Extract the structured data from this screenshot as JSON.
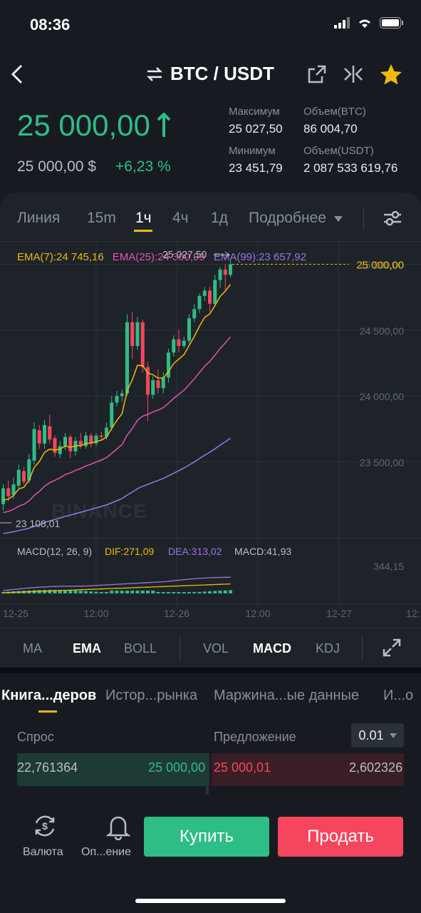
{
  "status_bar": {
    "time": "08:36"
  },
  "header": {
    "pair": "BTC / USDT",
    "swap_icon": "swap-arrows-icon",
    "share_icon": "share-icon",
    "compare_icon": "compare-icon",
    "favorite_icon": "star-icon"
  },
  "ticker": {
    "last_price": "25 000,00",
    "usd_price": "25 000,00 $",
    "change_pct": "+6,23 %",
    "high_label": "Максимум",
    "high_value": "25 027,50",
    "low_label": "Минимум",
    "low_value": "23 451,79",
    "vol_btc_label": "Объем(BTC)",
    "vol_btc_value": "86 004,70",
    "vol_usdt_label": "Объем(USDT)",
    "vol_usdt_value": "2 087 533 619,76"
  },
  "timeframes": {
    "line": "Линия",
    "m15": "15m",
    "h1": "1ч",
    "h4": "4ч",
    "d1": "1д",
    "more": "Подробнее",
    "active": "1ч"
  },
  "ema_labels": {
    "ema7": "EMA(7):24 745,16",
    "ema25": "EMA(25):24 300,99",
    "ema99": "EMA(99):23 657,92"
  },
  "chart_overlay": {
    "high_marker": "25 027,50",
    "low_marker": "23 108,01",
    "current_price_label": "25 000,00",
    "watermark": "BINANCE",
    "macd_legend": "MACD(12, 26, 9)",
    "dif": "DIF:271,09",
    "dea": "DEA:313,02",
    "macd_val": "MACD:41,93",
    "macd_axis": "344,15"
  },
  "chart_data": {
    "type": "candlestick",
    "y_ticks": [
      "25 000,00",
      "24 500,00",
      "24 000,00",
      "23 500,00"
    ],
    "x_ticks": [
      "12-25",
      "12:00",
      "12-26",
      "12:00",
      "12-27",
      "12:"
    ],
    "candles": [
      [
        23180,
        23300,
        23130,
        23330
      ],
      [
        23300,
        23240,
        23200,
        23360
      ],
      [
        23250,
        23330,
        23220,
        23380
      ],
      [
        23320,
        23440,
        23290,
        23480
      ],
      [
        23430,
        23350,
        23330,
        23460
      ],
      [
        23360,
        23520,
        23340,
        23560
      ],
      [
        23510,
        23750,
        23480,
        23800
      ],
      [
        23740,
        23640,
        23600,
        23780
      ],
      [
        23640,
        23780,
        23600,
        23820
      ],
      [
        23770,
        23670,
        23640,
        23860
      ],
      [
        23680,
        23570,
        23540,
        23700
      ],
      [
        23560,
        23620,
        23530,
        23660
      ],
      [
        23620,
        23690,
        23590,
        23720
      ],
      [
        23690,
        23580,
        23530,
        23710
      ],
      [
        23580,
        23660,
        23550,
        23690
      ],
      [
        23660,
        23620,
        23600,
        23720
      ],
      [
        23620,
        23700,
        23600,
        23730
      ],
      [
        23700,
        23640,
        23610,
        23720
      ],
      [
        23640,
        23700,
        23620,
        23720
      ],
      [
        23700,
        23690,
        23660,
        23730
      ],
      [
        23690,
        23760,
        23670,
        23800
      ],
      [
        23760,
        23950,
        23740,
        24000
      ],
      [
        23950,
        24000,
        23920,
        24040
      ],
      [
        24000,
        24020,
        23960,
        24050
      ],
      [
        24020,
        24560,
        24000,
        24620
      ],
      [
        24560,
        24380,
        24280,
        24640
      ],
      [
        24380,
        24560,
        24350,
        24600
      ],
      [
        24560,
        24220,
        24180,
        24580
      ],
      [
        24220,
        24010,
        23810,
        24260
      ],
      [
        24010,
        24120,
        23980,
        24150
      ],
      [
        24120,
        24060,
        24020,
        24200
      ],
      [
        24060,
        24140,
        24020,
        24180
      ],
      [
        24140,
        24330,
        24100,
        24360
      ],
      [
        24330,
        24430,
        24300,
        24460
      ],
      [
        24430,
        24380,
        24330,
        24500
      ],
      [
        24380,
        24420,
        24360,
        24450
      ],
      [
        24420,
        24590,
        24400,
        24620
      ],
      [
        24590,
        24660,
        24560,
        24700
      ],
      [
        24660,
        24760,
        24630,
        24780
      ],
      [
        24760,
        24800,
        24720,
        24830
      ],
      [
        24800,
        24700,
        24640,
        24830
      ],
      [
        24700,
        24880,
        24680,
        24920
      ],
      [
        24880,
        24960,
        24820,
        24980
      ],
      [
        24960,
        24920,
        24800,
        25000
      ],
      [
        24920,
        25000,
        24900,
        25027.5
      ]
    ],
    "ylim": [
      23000,
      25100
    ]
  },
  "indicator_tabs": {
    "ma": "MA",
    "ema": "EMA",
    "boll": "BOLL",
    "vol": "VOL",
    "macd": "MACD",
    "kdj": "KDJ"
  },
  "section_tabs": {
    "order_book": "Книга...деров",
    "market_history": "Истор...рынка",
    "margin": "Маржина...ые данные",
    "info": "И...о"
  },
  "order_book": {
    "bid_label": "Спрос",
    "ask_label": "Предложение",
    "precision": "0.01",
    "bid_qty": "22,761364",
    "bid_price": "25 000,00",
    "ask_price": "25 000,01",
    "ask_qty": "2,602326"
  },
  "bottom_nav": {
    "currency_label": "Валюта",
    "alert_label": "Оп...ение",
    "buy_label": "Купить",
    "sell_label": "Продать"
  },
  "colors": {
    "green": "#2ebd85",
    "red": "#f6465d",
    "ema7": "#f0b90b",
    "ema25": "#e84fb4",
    "ema99": "#9b74e8"
  }
}
